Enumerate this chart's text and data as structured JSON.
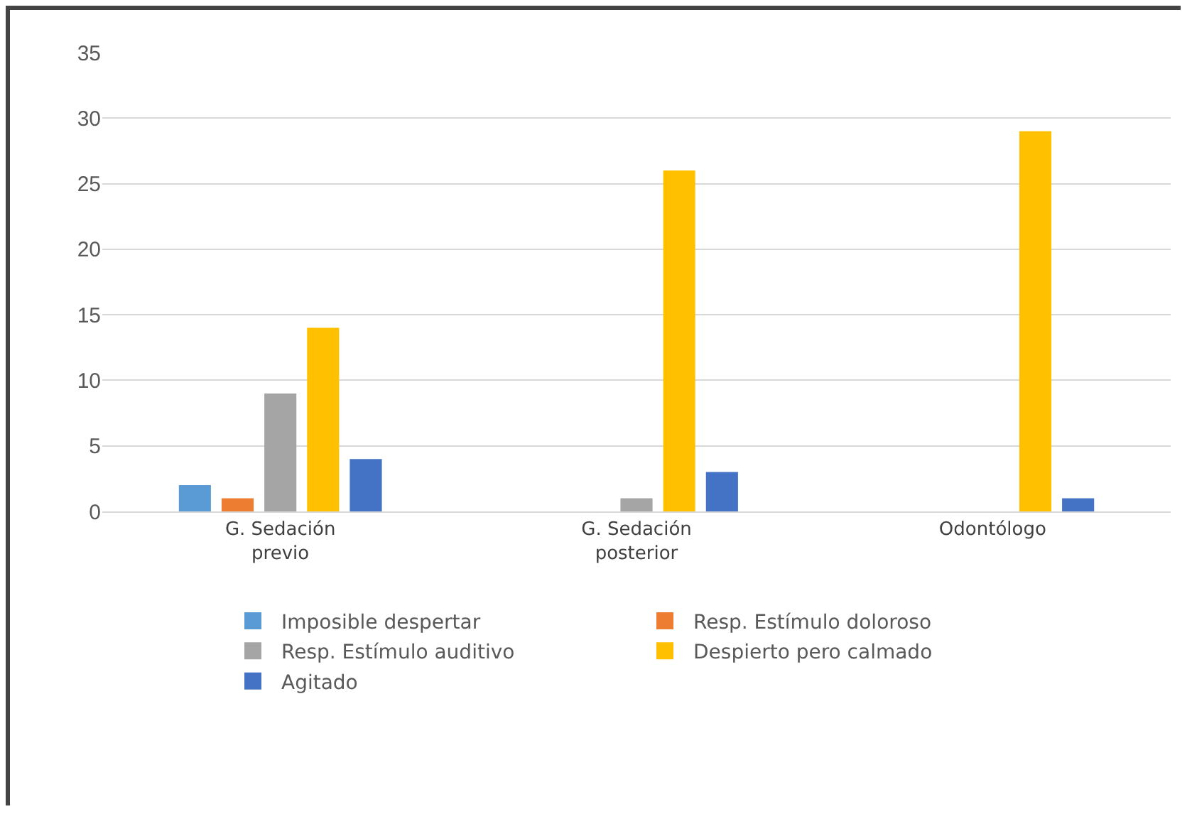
{
  "chart_data": {
    "type": "bar",
    "categories": [
      "G. Sedación previo",
      "G. Sedación posterior",
      "Odontólogo"
    ],
    "series": [
      {
        "name": "Imposible despertar",
        "color": "#5b9bd5",
        "values": [
          2,
          0,
          0
        ]
      },
      {
        "name": "Resp. Estímulo doloroso",
        "color": "#ed7d31",
        "values": [
          1,
          0,
          0
        ]
      },
      {
        "name": "Resp. Estímulo auditivo",
        "color": "#a5a5a5",
        "values": [
          9,
          1,
          0
        ]
      },
      {
        "name": "Despierto pero calmado",
        "color": "#ffc000",
        "values": [
          14,
          26,
          29
        ]
      },
      {
        "name": "Agitado",
        "color": "#4472c4",
        "values": [
          4,
          3,
          1
        ]
      }
    ],
    "ylim": [
      0,
      35
    ],
    "yticks": [
      0,
      5,
      10,
      15,
      20,
      25,
      30,
      35
    ],
    "grid": "y",
    "legend": "bottom"
  }
}
